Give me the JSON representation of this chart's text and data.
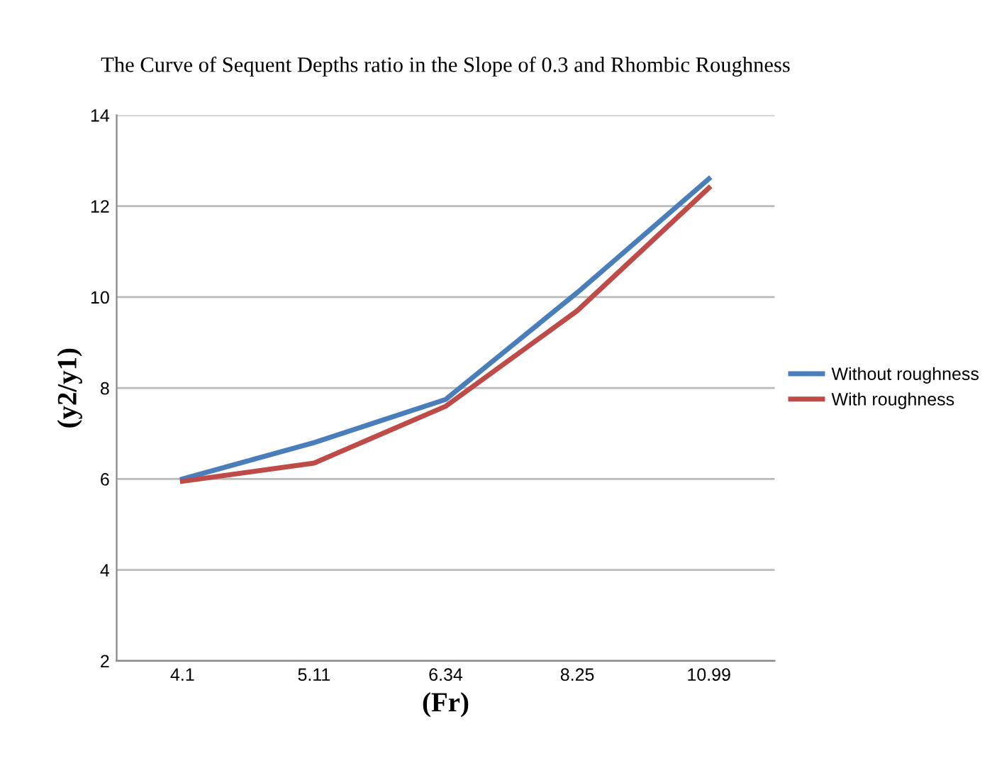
{
  "chart_data": {
    "type": "line",
    "title": "The Curve of Sequent Depths ratio in the Slope of 0.3 and Rhombic Roughness",
    "xlabel": "(Fr)",
    "ylabel": "(y2/y1)",
    "categories": [
      "4.1",
      "5.11",
      "6.34",
      "8.25",
      "10.99"
    ],
    "series": [
      {
        "name": "Without roughness",
        "color": "#4a7ebb",
        "values": [
          6.0,
          6.8,
          7.75,
          10.1,
          12.6
        ]
      },
      {
        "name": "With roughness",
        "color": "#be4b48",
        "values": [
          5.95,
          6.35,
          7.6,
          9.7,
          12.4
        ]
      }
    ],
    "ylim": [
      2,
      14
    ],
    "yticks": [
      2,
      4,
      6,
      8,
      10,
      12,
      14
    ],
    "grid": "y",
    "legend": "right",
    "marker": "none",
    "line_style": "solid"
  }
}
